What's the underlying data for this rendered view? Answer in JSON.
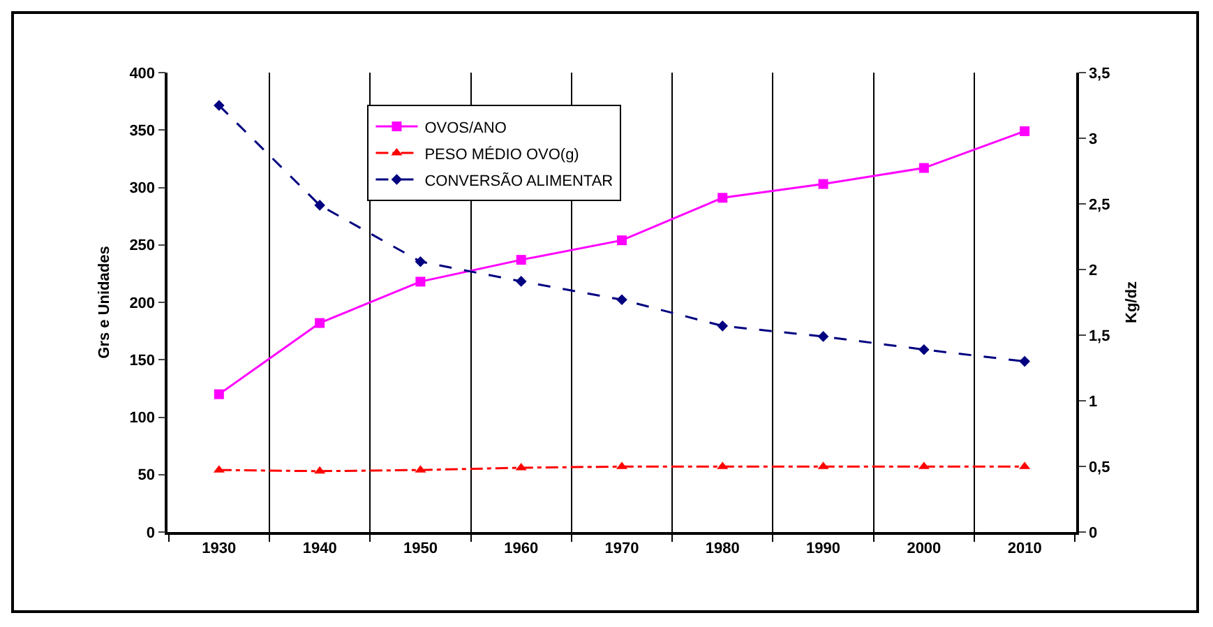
{
  "chart_data": {
    "type": "line",
    "ylabel": "Grs e Unidades",
    "y2label": "Kg/dz",
    "categories": [
      "1930",
      "1940",
      "1950",
      "1960",
      "1970",
      "1980",
      "1990",
      "2000",
      "2010"
    ],
    "series": [
      {
        "name": "OVOS/ANO",
        "color": "#ff00ff",
        "marker": "square",
        "line_style": "solid",
        "values": [
          120,
          182,
          218,
          237,
          254,
          291,
          303,
          317,
          349
        ]
      },
      {
        "name": "PESO MÉDIO OVO(g)",
        "color": "#ff0000",
        "marker": "triangle",
        "line_style": "dashdot",
        "values": [
          54,
          53,
          54,
          56,
          57,
          57,
          57,
          57,
          57
        ]
      },
      {
        "name": "CONVERSÃO ALIMENTAR",
        "color": "#000080",
        "marker": "diamond",
        "line_style": "dashed",
        "axis": "y2",
        "values": [
          3.25,
          2.49,
          2.06,
          1.91,
          1.77,
          1.57,
          1.49,
          1.39,
          1.3
        ]
      }
    ],
    "ylim": [
      0,
      400
    ],
    "yticks": [
      0,
      50,
      100,
      150,
      200,
      250,
      300,
      350,
      400
    ],
    "y2lim": [
      0,
      3.5
    ],
    "y2ticks": [
      0,
      {
        "value": 0.5,
        "label": "0,5"
      },
      1,
      {
        "value": 1.5,
        "label": "1,5"
      },
      2,
      {
        "value": 2.5,
        "label": "2,5"
      },
      3,
      {
        "value": 3.5,
        "label": "3,5"
      }
    ],
    "grid": "x",
    "legend": "top"
  }
}
